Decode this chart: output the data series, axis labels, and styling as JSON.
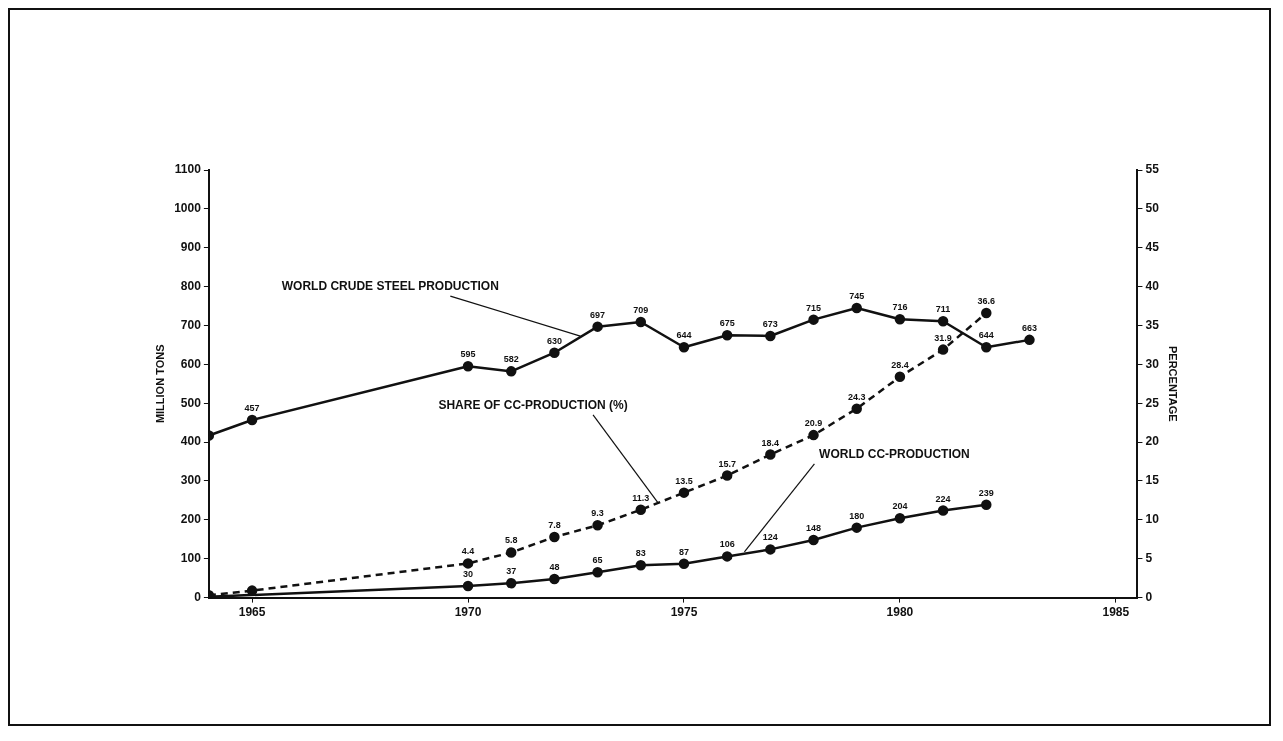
{
  "chart_data": {
    "type": "line",
    "ylabel": "MILLION TONS",
    "y2label": "PERCENTAGE",
    "xlim": [
      1964,
      1985.5
    ],
    "xticks": [
      1965,
      1970,
      1975,
      1980,
      1985
    ],
    "ylim": [
      0,
      1100
    ],
    "yticks": [
      0,
      100,
      200,
      300,
      400,
      500,
      600,
      700,
      800,
      900,
      1000,
      1100
    ],
    "y2lim": [
      0,
      55
    ],
    "y2ticks": [
      0,
      5,
      10,
      15,
      20,
      25,
      30,
      35,
      40,
      45,
      50,
      55
    ],
    "grid": false,
    "legend": false,
    "marker": "circle",
    "data_labels": true,
    "series": [
      {
        "color": "#111111",
        "line_style": "solid",
        "x": [
          1964,
          1965,
          1970,
          1971,
          1972,
          1973,
          1974,
          1975,
          1976,
          1977,
          1978,
          1979,
          1980,
          1981,
          1982,
          1983
        ],
        "values": [
          417,
          457,
          595,
          582,
          630,
          697,
          709,
          644,
          675,
          673,
          715,
          745,
          716,
          711,
          644,
          663
        ],
        "value_labels": [
          null,
          "457",
          "595",
          "582",
          "630",
          "697",
          "709",
          "644",
          "675",
          "673",
          "715",
          "745",
          "716",
          "711",
          "644",
          "663"
        ]
      },
      {
        "color": "#111111",
        "line_style": "dashed",
        "axis": "y2",
        "x": [
          1964,
          1965,
          1970,
          1971,
          1972,
          1973,
          1974,
          1975,
          1976,
          1977,
          1978,
          1979,
          1980,
          1981,
          1982
        ],
        "values": [
          0.3,
          0.9,
          4.4,
          5.8,
          7.8,
          9.3,
          11.3,
          13.5,
          15.7,
          18.4,
          20.9,
          24.3,
          28.4,
          31.9,
          36.6
        ],
        "value_labels": [
          null,
          null,
          "4.4",
          "5.8",
          "7.8",
          "9.3",
          "11.3",
          "13.5",
          "15.7",
          "18.4",
          "20.9",
          "24.3",
          "28.4",
          "31.9",
          "36.6"
        ]
      },
      {
        "color": "#111111",
        "line_style": "solid",
        "x": [
          1964,
          1970,
          1971,
          1972,
          1973,
          1974,
          1975,
          1976,
          1977,
          1978,
          1979,
          1980,
          1981,
          1982
        ],
        "values": [
          2,
          30,
          37,
          48,
          65,
          83,
          87,
          106,
          124,
          148,
          180,
          204,
          224,
          239
        ],
        "value_labels": [
          null,
          "30",
          "37",
          "48",
          "65",
          "83",
          "87",
          "106",
          "124",
          "148",
          "180",
          "204",
          "224",
          "239"
        ]
      }
    ],
    "annotations": [
      {
        "text": "WORLD CRUDE STEEL PRODUCTION",
        "x": 1972.6,
        "y": 665
      },
      {
        "text": "SHARE OF CC-PRODUCTION (%)",
        "x": 1974.4,
        "y": 236
      },
      {
        "text": "WORLD CC-PRODUCTION",
        "x": 1976.4,
        "y": 110
      }
    ]
  }
}
